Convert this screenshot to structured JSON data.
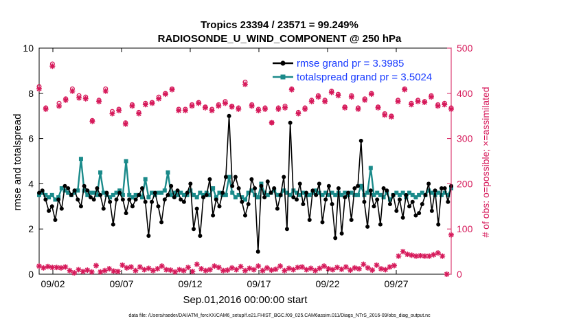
{
  "chart_data": {
    "type": "line",
    "title_line1": "Tropics 23394 / 23571 = 99.249%",
    "title_line2": "RADIOSONDE_U_WIND_COMPONENT @ 250 hPa",
    "xlabel": "Sep.01,2016 00:00:00 start",
    "ylabel_left": "rmse and totalspread",
    "ylabel_right": "# of obs: o=possible; ×=assimilated",
    "footer": "data file: /Users/raeder/DAI/ATM_forcXX/CAM6_setup/f.e21.FHIST_BGC.f09_025.CAM6assim.011/Diags_NTrS_2016-09/obs_diag_output.nc",
    "xlim": [
      1.0,
      31.0
    ],
    "ylim_left": [
      0,
      10
    ],
    "ylim_right": [
      0,
      500
    ],
    "xtick_values": [
      2,
      7,
      12,
      17,
      22,
      27
    ],
    "xtick_labels": [
      "09/02",
      "09/07",
      "09/12",
      "09/17",
      "09/22",
      "09/27"
    ],
    "ytick_left": [
      "0",
      "2",
      "4",
      "6",
      "8",
      "10"
    ],
    "ytick_right": [
      "0",
      "100",
      "200",
      "300",
      "400",
      "500"
    ],
    "colors": {
      "rmse": "#000000",
      "spread": "#1a8a8a",
      "obs": "#d6195a",
      "legend_text": "#1a3cff"
    },
    "series": [
      {
        "name": "rmse grand pr = 3.3985",
        "color": "#000000",
        "values": [
          3.6,
          3.7,
          3.3,
          2.8,
          3.0,
          2.4,
          3.3,
          2.9,
          3.9,
          3.8,
          3.5,
          3.7,
          3.3,
          3.0,
          3.9,
          3.7,
          3.4,
          3.3,
          3.8,
          3.5,
          2.9,
          3.6,
          3.2,
          2.2,
          3.3,
          3.6,
          3.3,
          2.7,
          3.3,
          3.0,
          3.3,
          3.5,
          3.8,
          3.2,
          1.7,
          3.2,
          3.6,
          3.0,
          2.3,
          3.3,
          3.5,
          3.9,
          3.4,
          3.7,
          3.3,
          3.2,
          3.6,
          4.0,
          2.0,
          2.9,
          1.7,
          3.4,
          3.5,
          4.2,
          2.6,
          3.3,
          3.0,
          3.6,
          4.3,
          7.0,
          3.9,
          4.3,
          3.8,
          3.2,
          2.6,
          3.1,
          4.2,
          3.8,
          1.0,
          3.9,
          3.4,
          4.1,
          3.6,
          3.8,
          2.9,
          3.5,
          4.3,
          2.0,
          6.7,
          3.4,
          3.3,
          4.0,
          3.1,
          3.6,
          2.4,
          3.7,
          3.5,
          4.0,
          2.3,
          3.3,
          3.9,
          3.1,
          1.6,
          3.8,
          1.8,
          3.4,
          3.6,
          2.4,
          3.8,
          3.9,
          5.9,
          3.2,
          2.1,
          3.7,
          3.0,
          3.3,
          2.2,
          3.8,
          3.7,
          3.1,
          3.5,
          2.8,
          3.3,
          2.5,
          3.5,
          3.0,
          3.2,
          2.6,
          2.7,
          3.1,
          3.5,
          4.0,
          2.8,
          3.7,
          2.2,
          3.8,
          3.8,
          3.2,
          3.9
        ]
      },
      {
        "name": "totalspread grand pr = 3.5024",
        "color": "#1a8a8a",
        "values": [
          3.5,
          3.6,
          3.5,
          3.4,
          3.5,
          3.3,
          3.4,
          3.8,
          3.7,
          3.6,
          3.5,
          3.6,
          3.7,
          5.1,
          3.7,
          3.5,
          3.6,
          3.6,
          3.5,
          4.5,
          3.6,
          3.5,
          3.4,
          3.5,
          3.6,
          3.7,
          3.5,
          5.0,
          3.5,
          3.4,
          3.5,
          3.5,
          3.4,
          4.2,
          3.4,
          3.6,
          3.5,
          3.6,
          3.6,
          3.7,
          4.5,
          3.5,
          3.6,
          3.5,
          3.6,
          3.5,
          3.5,
          3.7,
          3.5,
          3.4,
          3.6,
          3.5,
          3.6,
          3.5,
          3.8,
          3.4,
          3.6,
          3.5,
          3.5,
          4.3,
          3.6,
          3.4,
          3.5,
          3.4,
          3.3,
          3.6,
          3.7,
          3.5,
          3.4,
          4.0,
          3.6,
          3.5,
          3.6,
          3.7,
          3.5,
          3.5,
          3.7,
          3.6,
          3.5,
          3.7,
          3.6,
          3.5,
          3.6,
          3.5,
          3.5,
          3.6,
          3.7,
          3.6,
          3.5,
          3.6,
          3.5,
          3.6,
          3.5,
          3.6,
          3.5,
          3.6,
          3.5,
          3.6,
          3.5,
          3.5,
          3.9,
          3.5,
          3.6,
          4.7,
          3.5,
          3.6,
          3.5,
          3.4,
          3.6,
          3.3,
          3.5,
          3.6,
          3.5,
          3.6,
          3.4,
          3.6,
          3.5,
          3.4,
          3.5,
          3.6,
          3.5,
          3.7,
          3.6,
          3.5,
          3.6,
          3.5,
          3.6,
          3.5,
          3.8
        ]
      }
    ],
    "obs_possible_upper": [
      415,
      368,
      465,
      378,
      388,
      410,
      395,
      392,
      340,
      385,
      410,
      360,
      365,
      335,
      375,
      358,
      378,
      380,
      392,
      400,
      410,
      365,
      365,
      375,
      380,
      370,
      365,
      375,
      382,
      372,
      368,
      425,
      375,
      365,
      368,
      335,
      368,
      372,
      410,
      358,
      368,
      385,
      395,
      385,
      405,
      398,
      370,
      395,
      368,
      388,
      400,
      370,
      355,
      350,
      385,
      410,
      378,
      385,
      382,
      395,
      375,
      378,
      368
    ],
    "obs_assimilated_upper": [
      410,
      365,
      460,
      372,
      385,
      405,
      390,
      388,
      338,
      382,
      405,
      355,
      362,
      332,
      372,
      355,
      375,
      378,
      388,
      398,
      408,
      362,
      362,
      372,
      378,
      368,
      362,
      372,
      378,
      370,
      365,
      420,
      372,
      362,
      365,
      335,
      365,
      368,
      408,
      355,
      365,
      382,
      392,
      382,
      402,
      395,
      368,
      392,
      365,
      385,
      398,
      368,
      352,
      348,
      382,
      408,
      375,
      382,
      380,
      392,
      372,
      375,
      365
    ],
    "obs_lower": [
      18,
      14,
      17,
      15,
      15,
      14,
      16,
      8,
      3,
      10,
      6,
      9,
      5,
      19,
      5,
      8,
      12,
      7,
      6,
      20,
      14,
      16,
      8,
      16,
      10,
      13,
      8,
      12,
      18,
      10,
      9,
      5,
      10,
      8,
      15,
      6,
      22,
      12,
      8,
      10,
      18,
      15,
      8,
      9,
      14,
      10,
      17,
      8,
      13,
      10,
      18,
      8,
      14,
      9,
      11,
      18,
      8,
      13,
      10,
      15,
      16,
      10,
      13,
      8,
      13,
      18,
      12,
      10,
      15,
      11,
      16,
      9,
      14,
      12,
      22,
      14,
      9,
      20,
      12,
      10,
      16,
      19,
      40,
      50,
      44,
      42,
      40,
      41,
      40,
      40,
      43,
      47,
      40,
      0,
      87
    ]
  }
}
